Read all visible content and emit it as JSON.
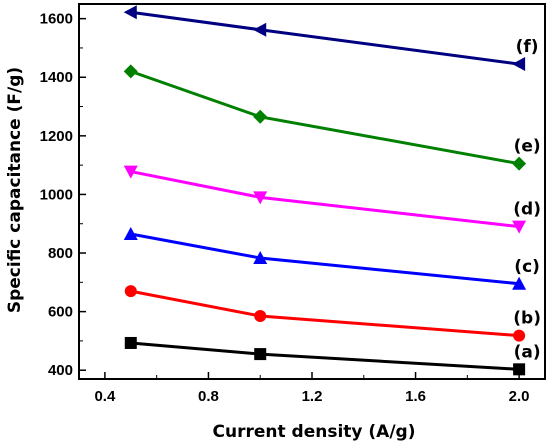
{
  "chart_data": {
    "type": "line",
    "title": "",
    "xlabel": "Current density (A/g)",
    "ylabel": "Specific capacitance (F/g)",
    "xlim": [
      0.3,
      2.1
    ],
    "ylim": [
      370,
      1650
    ],
    "xticks": [
      0.4,
      0.8,
      1.2,
      1.6,
      2.0
    ],
    "xtick_labels": [
      "0.4",
      "0.8",
      "1.2",
      "1.6",
      "2.0"
    ],
    "yticks": [
      400,
      600,
      800,
      1000,
      1200,
      1400,
      1600
    ],
    "ytick_labels": [
      "400",
      "600",
      "800",
      "1000",
      "1200",
      "1400",
      "1600"
    ],
    "x": [
      0.5,
      1.0,
      2.0
    ],
    "grid": false,
    "legend": "none",
    "series": [
      {
        "name": "(a)",
        "values": [
          493,
          455,
          403
        ],
        "color": "#000000",
        "marker": "square"
      },
      {
        "name": "(b)",
        "values": [
          670,
          585,
          518
        ],
        "color": "#ff0000",
        "marker": "circle"
      },
      {
        "name": "(c)",
        "values": [
          865,
          783,
          695
        ],
        "color": "#0000ff",
        "marker": "triangle-up"
      },
      {
        "name": "(d)",
        "values": [
          1078,
          990,
          890
        ],
        "color": "#ff00ff",
        "marker": "triangle-down"
      },
      {
        "name": "(e)",
        "values": [
          1420,
          1265,
          1105
        ],
        "color": "#008000",
        "marker": "diamond"
      },
      {
        "name": "(f)",
        "values": [
          1622,
          1562,
          1445
        ],
        "color": "#000080",
        "marker": "triangle-left"
      }
    ]
  }
}
